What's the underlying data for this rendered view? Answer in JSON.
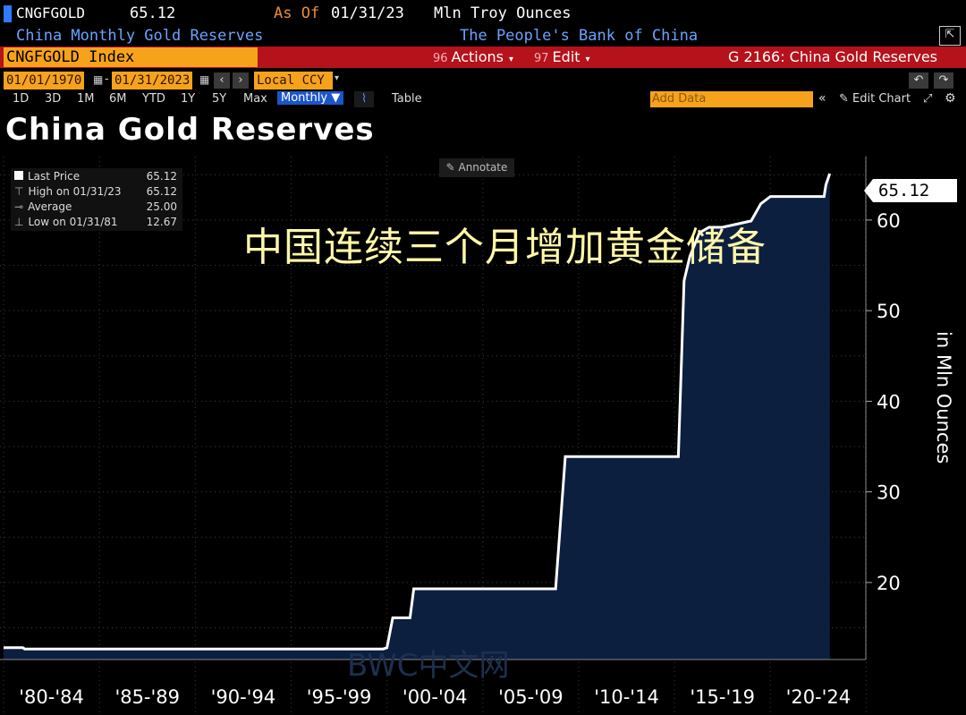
{
  "header": {
    "ticker": "CNGFGOLD",
    "price": "65.12",
    "as_of_label": "As Of",
    "as_of_date": "01/31/23",
    "units": "Mln Troy Ounces",
    "description": "China Monthly Gold Reserves",
    "source": "The People's Bank of China",
    "index_label": "CNGFGOLD Index",
    "actions_num": "96",
    "actions_label": "Actions",
    "edit_num": "97",
    "edit_label": "Edit",
    "function_label": "G 2166: China Gold Reserves",
    "start_date": "01/01/1970",
    "end_date": "01/31/2023",
    "currency": "Local CCY",
    "periods": [
      "1D",
      "3D",
      "1M",
      "6M",
      "YTD",
      "1Y",
      "5Y",
      "Max"
    ],
    "frequency": "Monthly",
    "table_label": "Table",
    "add_data_label": "Add Data",
    "edit_chart_label": "Edit Chart"
  },
  "legend": {
    "rows": [
      {
        "label": "Last Price",
        "value": "65.12"
      },
      {
        "label": "High on 01/31/23",
        "value": "65.12"
      },
      {
        "label": "Average",
        "value": "25.00"
      },
      {
        "label": "Low on 01/31/81",
        "value": "12.67"
      }
    ]
  },
  "annotate_label": "Annotate",
  "annotation_cn": "中国连续三个月增加黄金储备",
  "watermark": "BWC中文网",
  "last_value_label": "65.12",
  "colors": {
    "ticker_bar": "#b5121b",
    "index_box": "#f7a21b",
    "fill": "#0d1f3f",
    "line": "#ffffff",
    "annotation": "#fff7a8"
  },
  "chart_data": {
    "type": "area",
    "title": "China Gold Reserves",
    "ylabel": "in Mln Ounces",
    "ylim": [
      11.5,
      67
    ],
    "y_ticks": [
      20,
      30,
      40,
      50,
      60
    ],
    "x_tick_labels": [
      "'80-'84",
      "'85-'89",
      "'90-'94",
      "'95-'99",
      "'00-'04",
      "'05-'09",
      "'10-'14",
      "'15-'19",
      "'20-'24"
    ],
    "x_range": [
      1980,
      2024
    ],
    "series": [
      {
        "x": [
          1980.0,
          1981.0,
          1981.1,
          1981.2,
          1999.8,
          2000.0,
          2000.3,
          2001.2,
          2001.4,
          2002.0,
          2002.2,
          2008.8,
          2009.3,
          2015.2,
          2015.5,
          2015.8,
          2016.3,
          2016.8,
          2017.5,
          2019.0,
          2019.5,
          2020.0,
          2022.8,
          2022.9,
          2023.1
        ],
        "values": [
          12.8,
          12.8,
          12.67,
          12.67,
          12.67,
          12.8,
          16.1,
          16.1,
          19.3,
          19.3,
          19.3,
          19.3,
          33.9,
          33.9,
          53.3,
          56.0,
          58.6,
          59.2,
          59.2,
          59.9,
          61.8,
          62.6,
          62.6,
          63.9,
          65.12
        ]
      }
    ]
  }
}
